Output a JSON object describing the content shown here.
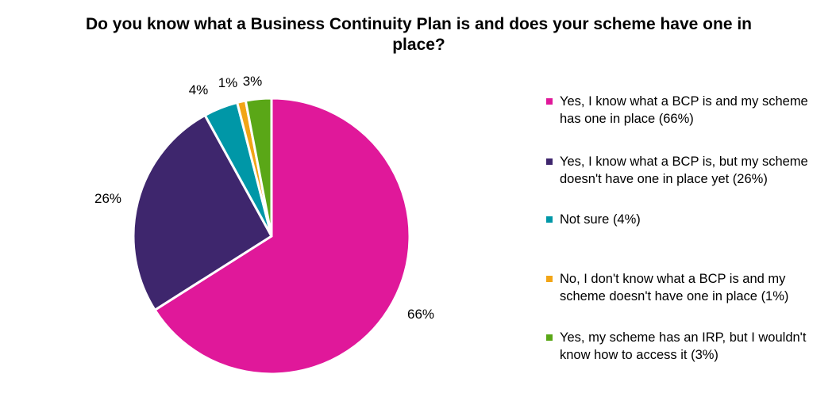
{
  "chart_data": {
    "type": "pie",
    "title": "Do you know what a Business Continuity Plan is and does your scheme have one in place?",
    "slices": [
      {
        "label": "Yes, I know what a BCP is and my scheme has one in place (66%)",
        "value": 66,
        "data_label": "66%",
        "color": "#E0189A"
      },
      {
        "label": "Yes, I know what a BCP is, but my scheme doesn't have one in place yet (26%)",
        "value": 26,
        "data_label": "26%",
        "color": "#3E266D"
      },
      {
        "label": "Not sure (4%)",
        "value": 4,
        "data_label": "4%",
        "color": "#0097A7"
      },
      {
        "label": "No, I don't know what a BCP is and my scheme doesn't have one in place (1%)",
        "value": 1,
        "data_label": "1%",
        "color": "#F2A516"
      },
      {
        "label": "Yes, my scheme has an IRP, but I wouldn't know how to access it (3%)",
        "value": 3,
        "data_label": "3%",
        "color": "#5AA717"
      }
    ],
    "legend_position": "right",
    "slice_order": "clockwise from top"
  }
}
